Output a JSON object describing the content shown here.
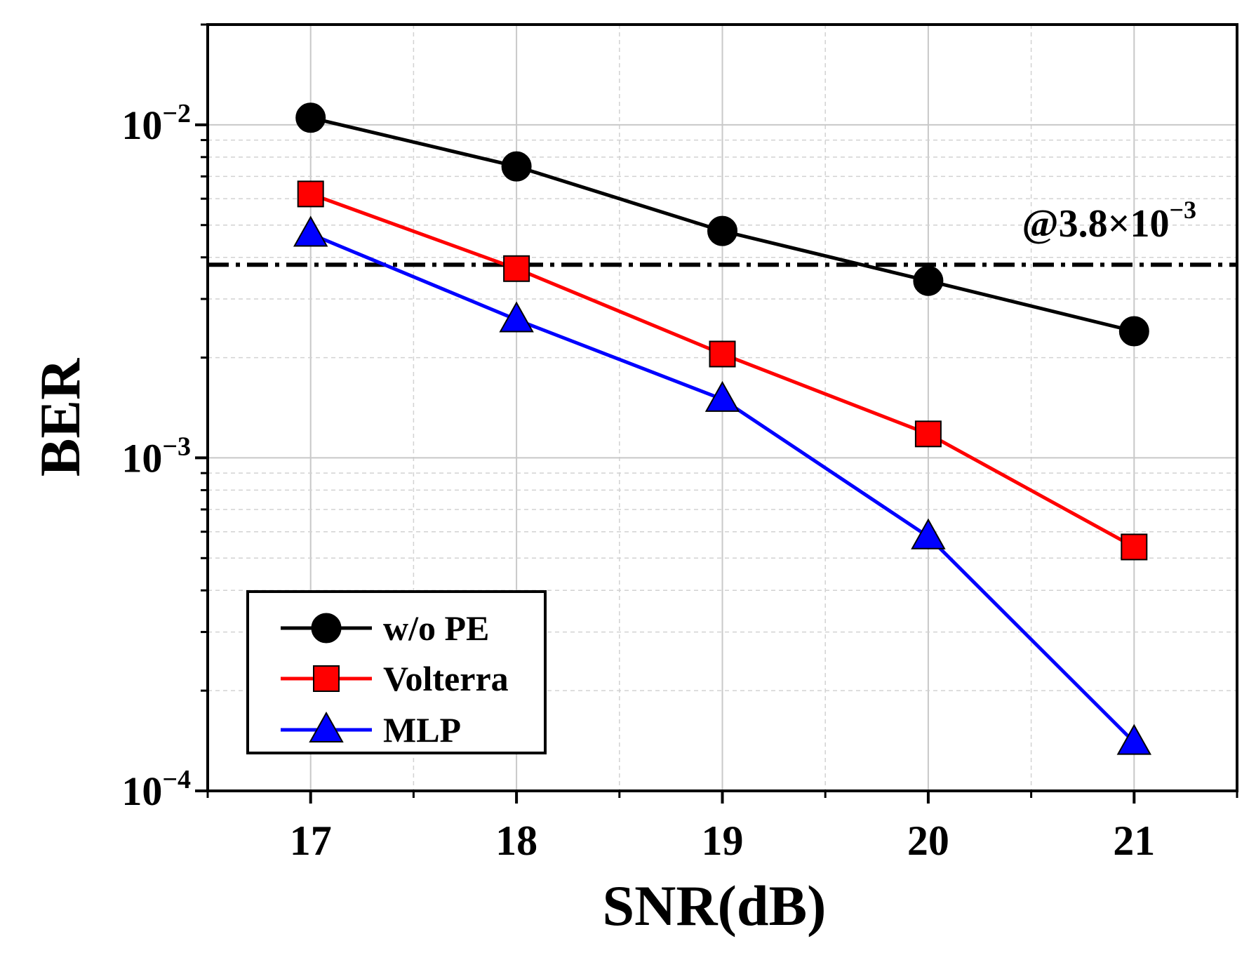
{
  "chart_data": {
    "type": "line",
    "title": "",
    "xlabel": "SNR(dB)",
    "ylabel": "BER",
    "x": [
      17,
      18,
      19,
      20,
      21
    ],
    "xlim": [
      16.5,
      21.5
    ],
    "xticks": [
      17,
      18,
      19,
      20,
      21
    ],
    "x_minor_ticks": [
      16.5,
      17.5,
      18.5,
      19.5,
      20.5,
      21.5
    ],
    "ylim": [
      0.0001,
      0.02
    ],
    "yscale": "log",
    "yticks": [
      {
        "base": "10",
        "exp": "−4",
        "value": 0.0001
      },
      {
        "base": "10",
        "exp": "−3",
        "value": 0.001
      },
      {
        "base": "10",
        "exp": "−2",
        "value": 0.01
      }
    ],
    "grid": true,
    "series": [
      {
        "name": "w/o PE",
        "color": "#000000",
        "marker": "circle",
        "values": [
          0.0105,
          0.0075,
          0.0048,
          0.0034,
          0.0024
        ]
      },
      {
        "name": "Volterra",
        "color": "#ff0000",
        "marker": "square",
        "values": [
          0.0062,
          0.0037,
          0.00205,
          0.00118,
          0.00054
        ]
      },
      {
        "name": "MLP",
        "color": "#0000ff",
        "marker": "triangle",
        "values": [
          0.0047,
          0.0026,
          0.0015,
          0.00058,
          0.00014
        ]
      }
    ],
    "threshold": {
      "value": 0.0038,
      "label_prefix": "@3.8×10",
      "label_exp": "−3",
      "color": "#000000"
    },
    "legend": {
      "position": "bottom-left"
    }
  }
}
